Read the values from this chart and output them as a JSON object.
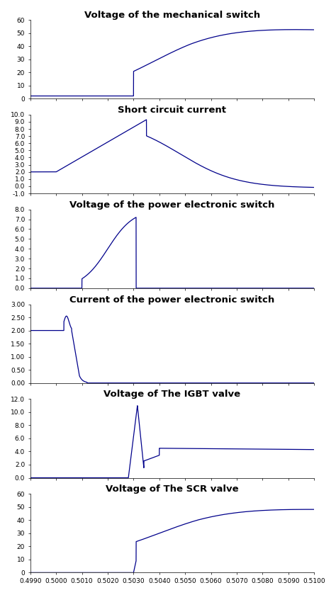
{
  "title1": "Voltage of the mechanical switch",
  "title2": "Short circuit current",
  "title3": "Voltage of the power electronic switch",
  "title4": "Current of the power electronic switch",
  "title5": "Voltage of The IGBT valve",
  "title6": "Voltage of The SCR valve",
  "xlim": [
    0.499,
    0.51
  ],
  "xticks": [
    0.499,
    0.5,
    0.501,
    0.502,
    0.503,
    0.504,
    0.505,
    0.506,
    0.507,
    0.508,
    0.509,
    0.51
  ],
  "line_color": "#00008B",
  "bg_color": "#ffffff",
  "title_fontsize": 9.5,
  "tick_fontsize": 6.5,
  "xlabel_fontsize": 6.5
}
